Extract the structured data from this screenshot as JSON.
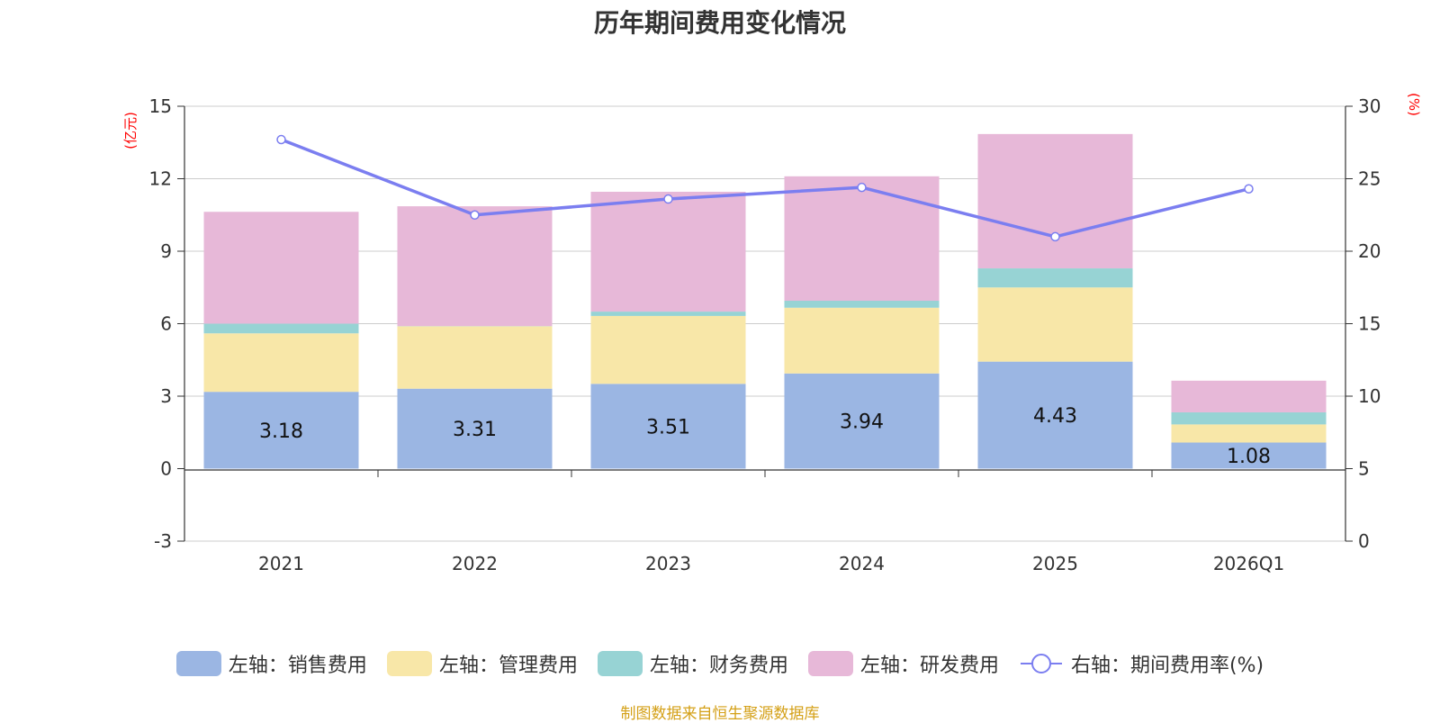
{
  "chart_data": {
    "type": "bar+line",
    "title": "历年期间费用变化情况",
    "categories": [
      "2021",
      "2022",
      "2023",
      "2024",
      "2025",
      "2026Q1"
    ],
    "left_axis": {
      "unit": "(亿元)",
      "range": [
        -3,
        15
      ],
      "ticks": [
        -3,
        0,
        3,
        6,
        9,
        12,
        15
      ]
    },
    "right_axis": {
      "unit": "(%)",
      "range": [
        0,
        30
      ],
      "ticks": [
        0,
        5,
        10,
        15,
        20,
        25,
        30
      ]
    },
    "series": [
      {
        "name": "左轴：销售费用",
        "type": "bar",
        "stack": "cost",
        "color": "#9bb6e3",
        "values": [
          3.18,
          3.31,
          3.51,
          3.94,
          4.43,
          1.08
        ],
        "show_labels": true
      },
      {
        "name": "左轴：管理费用",
        "type": "bar",
        "stack": "cost",
        "color": "#f8e7a8",
        "values": [
          2.42,
          2.58,
          2.81,
          2.72,
          3.07,
          0.75
        ]
      },
      {
        "name": "左轴：财务费用",
        "type": "bar",
        "stack": "cost",
        "color": "#97d3d4",
        "values": [
          0.4,
          0.01,
          0.18,
          0.29,
          0.79,
          0.5
        ]
      },
      {
        "name": "左轴：研发费用",
        "type": "bar",
        "stack": "cost",
        "color": "#e7b8d8",
        "values": [
          4.63,
          4.96,
          4.96,
          5.15,
          5.56,
          1.31
        ]
      },
      {
        "name": "右轴：期间费用率(%)",
        "type": "line",
        "axis": "right",
        "color": "#7b7ef0",
        "values": [
          27.7,
          22.5,
          23.6,
          24.4,
          21.0,
          24.3
        ]
      }
    ]
  },
  "source": "制图数据来自恒生聚源数据库"
}
